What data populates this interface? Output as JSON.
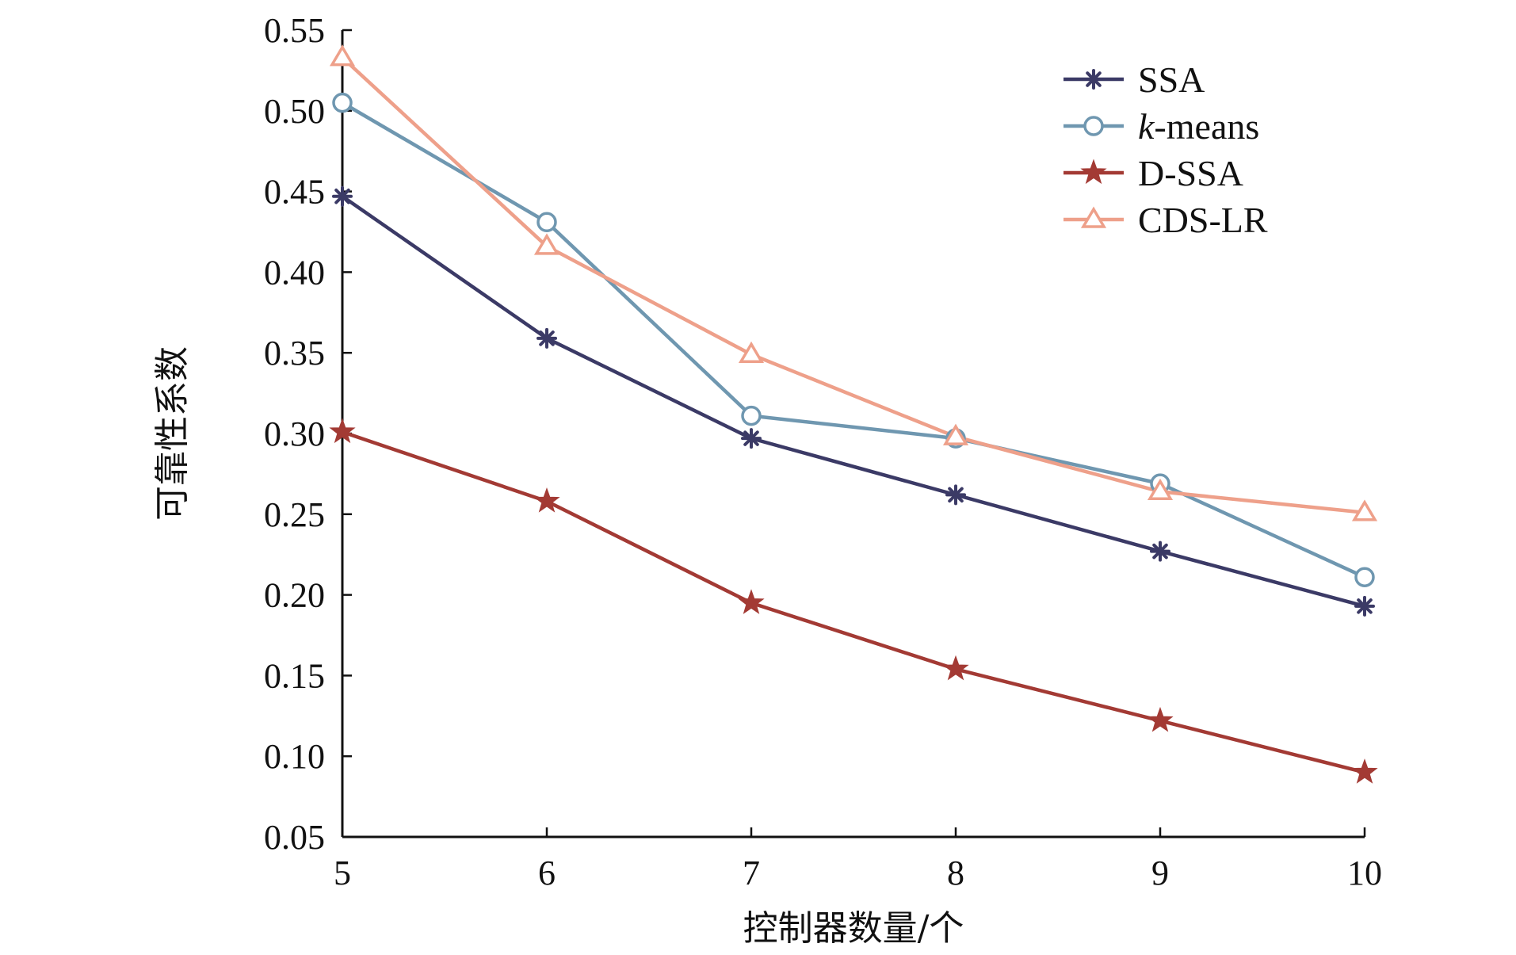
{
  "chart_data": {
    "type": "line",
    "xlabel": "控制器数量/个",
    "ylabel": "可靠性系数",
    "x": [
      5,
      6,
      7,
      8,
      9,
      10
    ],
    "xlim": [
      5,
      10
    ],
    "ylim": [
      0.05,
      0.55
    ],
    "xticks": [
      "5",
      "6",
      "7",
      "8",
      "9",
      "10"
    ],
    "yticks": [
      "0.05",
      "0.10",
      "0.15",
      "0.20",
      "0.25",
      "0.30",
      "0.35",
      "0.40",
      "0.45",
      "0.50",
      "0.55"
    ],
    "grid": false,
    "legend_position": "top-right",
    "series": [
      {
        "name": "SSA",
        "marker": "asterisk",
        "color": "#3b3a66",
        "values": [
          0.447,
          0.359,
          0.297,
          0.262,
          0.227,
          0.193
        ]
      },
      {
        "name": "k-means",
        "marker": "circle",
        "color": "#6f97b0",
        "values": [
          0.505,
          0.431,
          0.311,
          0.297,
          0.269,
          0.211
        ]
      },
      {
        "name": "D-SSA",
        "marker": "star",
        "color": "#a33a34",
        "values": [
          0.301,
          0.258,
          0.195,
          0.154,
          0.122,
          0.09
        ]
      },
      {
        "name": "CDS-LR",
        "marker": "triangle",
        "color": "#eea08a",
        "values": [
          0.533,
          0.416,
          0.349,
          0.298,
          0.264,
          0.251
        ]
      }
    ]
  }
}
